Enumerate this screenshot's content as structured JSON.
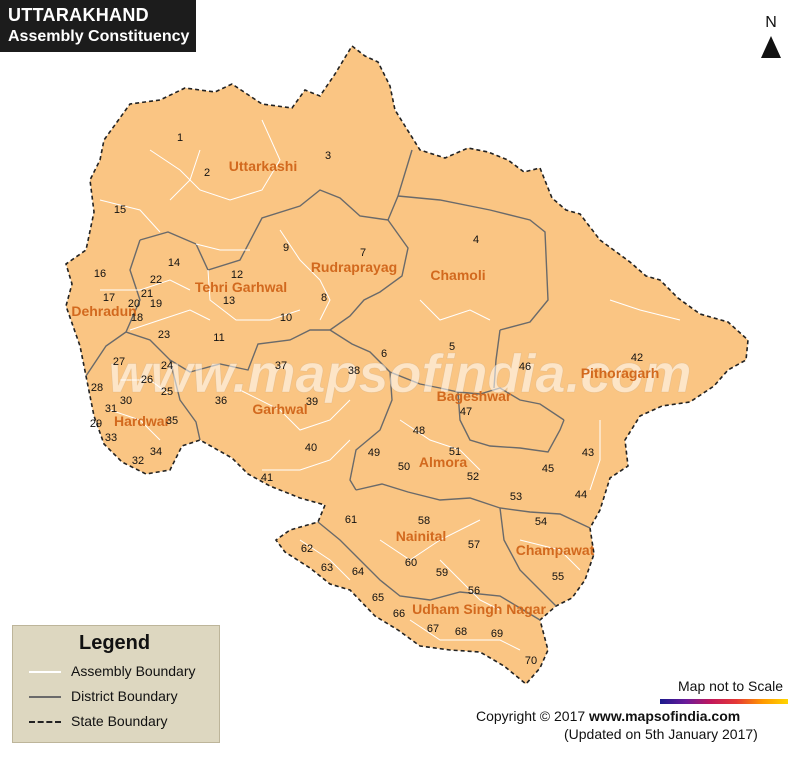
{
  "title": {
    "line1": "UTTARAKHAND",
    "line2": "Assembly Constituency"
  },
  "north_label": "N",
  "watermark": "www.mapsofindia.com",
  "districts": [
    {
      "name": "Uttarkashi"
    },
    {
      "name": "Chamoli"
    },
    {
      "name": "Rudraprayag"
    },
    {
      "name": "Tehri Garhwal"
    },
    {
      "name": "Dehradun"
    },
    {
      "name": "Hardwar"
    },
    {
      "name": "Garhwal"
    },
    {
      "name": "Pithoragarh"
    },
    {
      "name": "Bageshwar"
    },
    {
      "name": "Almora"
    },
    {
      "name": "Nainital"
    },
    {
      "name": "Champawat"
    },
    {
      "name": "Udham Singh Nagar"
    }
  ],
  "constituencies": [
    "1",
    "2",
    "3",
    "4",
    "5",
    "6",
    "7",
    "8",
    "9",
    "10",
    "11",
    "12",
    "13",
    "14",
    "15",
    "16",
    "17",
    "18",
    "19",
    "20",
    "21",
    "22",
    "23",
    "24",
    "25",
    "26",
    "27",
    "28",
    "29",
    "30",
    "31",
    "32",
    "33",
    "34",
    "35",
    "36",
    "37",
    "38",
    "39",
    "40",
    "41",
    "42",
    "43",
    "44",
    "45",
    "46",
    "47",
    "48",
    "49",
    "50",
    "51",
    "52",
    "53",
    "54",
    "55",
    "56",
    "57",
    "58",
    "59",
    "60",
    "61",
    "62",
    "63",
    "64",
    "65",
    "66",
    "67",
    "68",
    "69",
    "70"
  ],
  "legend": {
    "title": "Legend",
    "items": [
      {
        "label": "Assembly Boundary"
      },
      {
        "label": "District Boundary"
      },
      {
        "label": "State Boundary"
      }
    ]
  },
  "scale_note": "Map not to Scale",
  "copyright": {
    "prefix": "Copyright © 2017 ",
    "site": "www.mapsofindia.com"
  },
  "updated": "(Updated on 5th January 2017)",
  "colors": {
    "land": "#fac583",
    "district_label": "#d2691e",
    "assembly_line": "#ffffff",
    "district_line": "#6a6a6a",
    "state_line": "#222222"
  }
}
